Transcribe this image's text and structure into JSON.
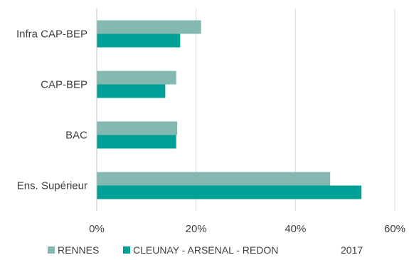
{
  "chart_data": {
    "type": "bar",
    "orientation": "horizontal",
    "categories": [
      "Infra CAP-BEP",
      "CAP-BEP",
      "BAC",
      "Ens. Supérieur"
    ],
    "series": [
      {
        "name": "RENNES",
        "values": [
          21,
          16,
          16.2,
          47
        ],
        "color": "#84b9b1"
      },
      {
        "name": "CLEUNAY - ARSENAL - REDON",
        "values": [
          16.8,
          13.8,
          16,
          53.3
        ],
        "color": "#00a096"
      }
    ],
    "xlim": [
      0,
      60
    ],
    "xticks": [
      0,
      20,
      40,
      60
    ],
    "tick_format": "percent",
    "grid": true,
    "legend_position": "bottom",
    "legend_extra_text": "2017"
  }
}
